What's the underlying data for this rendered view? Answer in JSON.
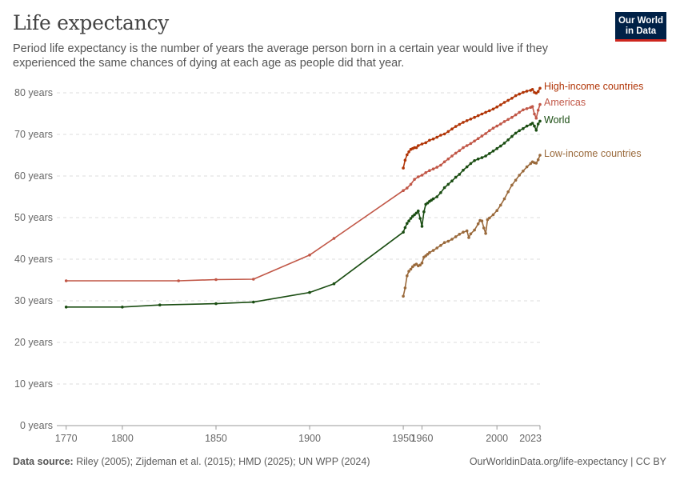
{
  "header": {
    "title": "Life expectancy",
    "subtitle": "Period life expectancy is the number of years the average person born in a certain year would live if they experienced the same chances of dying at each age as people did that year."
  },
  "logo": {
    "line1": "Our World",
    "line2": "in Data",
    "bg_color": "#002147",
    "accent_color": "#ce261e"
  },
  "footer": {
    "source_label": "Data source:",
    "source_text": "Riley (2005); Zijdeman et al. (2015); HMD (2025); UN WPP (2024)",
    "link": "OurWorldinData.org/life-expectancy | CC BY"
  },
  "chart_data": {
    "type": "line",
    "title": "Life expectancy",
    "xlim": [
      1765,
      2023
    ],
    "ylim": [
      0,
      80
    ],
    "x_ticks": [
      1770,
      1800,
      1850,
      1900,
      1950,
      1960,
      2000,
      2023
    ],
    "y_ticks": [
      0,
      10,
      20,
      30,
      40,
      50,
      60,
      70,
      80
    ],
    "y_tick_labels": [
      "0 years",
      "10 years",
      "20 years",
      "30 years",
      "40 years",
      "50 years",
      "60 years",
      "70 years",
      "80 years"
    ],
    "grid": "horizontal-dashed",
    "series": [
      {
        "name": "High-income countries",
        "color": "#b13507",
        "points": [
          [
            1950,
            61.9
          ],
          [
            1951,
            63.8
          ],
          [
            1952,
            65.1
          ],
          [
            1953,
            65.8
          ],
          [
            1954,
            66.4
          ],
          [
            1955,
            66.6
          ],
          [
            1956,
            66.8
          ],
          [
            1957,
            66.8
          ],
          [
            1958,
            67.3
          ],
          [
            1960,
            67.7
          ],
          [
            1962,
            68.0
          ],
          [
            1964,
            68.6
          ],
          [
            1966,
            68.9
          ],
          [
            1968,
            69.3
          ],
          [
            1970,
            69.8
          ],
          [
            1972,
            70.1
          ],
          [
            1974,
            70.7
          ],
          [
            1976,
            71.3
          ],
          [
            1978,
            71.9
          ],
          [
            1980,
            72.4
          ],
          [
            1982,
            72.9
          ],
          [
            1984,
            73.3
          ],
          [
            1986,
            73.7
          ],
          [
            1988,
            74.1
          ],
          [
            1990,
            74.5
          ],
          [
            1992,
            74.9
          ],
          [
            1994,
            75.3
          ],
          [
            1996,
            75.7
          ],
          [
            1998,
            76.1
          ],
          [
            2000,
            76.6
          ],
          [
            2002,
            77.1
          ],
          [
            2004,
            77.7
          ],
          [
            2006,
            78.2
          ],
          [
            2008,
            78.7
          ],
          [
            2010,
            79.3
          ],
          [
            2012,
            79.7
          ],
          [
            2014,
            80.1
          ],
          [
            2016,
            80.4
          ],
          [
            2018,
            80.6
          ],
          [
            2019,
            80.8
          ],
          [
            2020,
            80.1
          ],
          [
            2021,
            79.9
          ],
          [
            2022,
            80.3
          ],
          [
            2023,
            81.1
          ]
        ]
      },
      {
        "name": "Americas",
        "color": "#c15747",
        "points": [
          [
            1770,
            34.8
          ],
          [
            1830,
            34.8
          ],
          [
            1850,
            35.1
          ],
          [
            1870,
            35.2
          ],
          [
            1900,
            41.0
          ],
          [
            1913,
            45.0
          ],
          [
            1950,
            56.5
          ],
          [
            1952,
            57.1
          ],
          [
            1954,
            58.0
          ],
          [
            1956,
            59.2
          ],
          [
            1958,
            59.8
          ],
          [
            1960,
            60.2
          ],
          [
            1962,
            60.8
          ],
          [
            1964,
            61.3
          ],
          [
            1966,
            61.7
          ],
          [
            1968,
            62.1
          ],
          [
            1970,
            62.6
          ],
          [
            1972,
            63.4
          ],
          [
            1974,
            64.1
          ],
          [
            1976,
            64.8
          ],
          [
            1978,
            65.5
          ],
          [
            1980,
            66.1
          ],
          [
            1982,
            66.8
          ],
          [
            1984,
            67.3
          ],
          [
            1986,
            67.8
          ],
          [
            1988,
            68.4
          ],
          [
            1990,
            69.0
          ],
          [
            1992,
            69.6
          ],
          [
            1994,
            70.2
          ],
          [
            1996,
            70.9
          ],
          [
            1998,
            71.5
          ],
          [
            2000,
            72.0
          ],
          [
            2002,
            72.5
          ],
          [
            2004,
            73.1
          ],
          [
            2006,
            73.6
          ],
          [
            2008,
            74.1
          ],
          [
            2010,
            74.7
          ],
          [
            2012,
            75.3
          ],
          [
            2014,
            75.9
          ],
          [
            2016,
            76.2
          ],
          [
            2018,
            76.5
          ],
          [
            2019,
            76.7
          ],
          [
            2020,
            74.9
          ],
          [
            2021,
            73.9
          ],
          [
            2022,
            75.8
          ],
          [
            2023,
            77.2
          ]
        ]
      },
      {
        "name": "World",
        "color": "#1a4d12",
        "points": [
          [
            1770,
            28.5
          ],
          [
            1800,
            28.5
          ],
          [
            1820,
            29.0
          ],
          [
            1850,
            29.3
          ],
          [
            1870,
            29.7
          ],
          [
            1900,
            32.0
          ],
          [
            1913,
            34.1
          ],
          [
            1950,
            46.5
          ],
          [
            1951,
            47.6
          ],
          [
            1952,
            48.6
          ],
          [
            1953,
            49.2
          ],
          [
            1954,
            49.8
          ],
          [
            1955,
            50.3
          ],
          [
            1956,
            50.7
          ],
          [
            1957,
            51.1
          ],
          [
            1958,
            51.6
          ],
          [
            1959,
            49.8
          ],
          [
            1960,
            47.9
          ],
          [
            1961,
            51.4
          ],
          [
            1962,
            53.2
          ],
          [
            1963,
            53.5
          ],
          [
            1964,
            53.9
          ],
          [
            1965,
            54.2
          ],
          [
            1966,
            54.5
          ],
          [
            1968,
            55.0
          ],
          [
            1970,
            56.0
          ],
          [
            1972,
            57.2
          ],
          [
            1974,
            58.0
          ],
          [
            1976,
            58.8
          ],
          [
            1978,
            59.7
          ],
          [
            1980,
            60.4
          ],
          [
            1982,
            61.4
          ],
          [
            1984,
            62.2
          ],
          [
            1986,
            63.0
          ],
          [
            1988,
            63.7
          ],
          [
            1990,
            64.1
          ],
          [
            1992,
            64.4
          ],
          [
            1994,
            64.8
          ],
          [
            1996,
            65.4
          ],
          [
            1998,
            66.0
          ],
          [
            2000,
            66.6
          ],
          [
            2002,
            67.2
          ],
          [
            2004,
            67.9
          ],
          [
            2006,
            68.7
          ],
          [
            2008,
            69.5
          ],
          [
            2010,
            70.3
          ],
          [
            2012,
            70.9
          ],
          [
            2014,
            71.4
          ],
          [
            2016,
            72.0
          ],
          [
            2018,
            72.4
          ],
          [
            2019,
            72.7
          ],
          [
            2020,
            72.0
          ],
          [
            2021,
            71.0
          ],
          [
            2022,
            72.5
          ],
          [
            2023,
            73.2
          ]
        ]
      },
      {
        "name": "Low-income countries",
        "color": "#9a6a3c",
        "points": [
          [
            1950,
            31.1
          ],
          [
            1951,
            33.1
          ],
          [
            1952,
            36.0
          ],
          [
            1953,
            37.1
          ],
          [
            1954,
            37.6
          ],
          [
            1955,
            38.2
          ],
          [
            1956,
            38.6
          ],
          [
            1957,
            38.8
          ],
          [
            1958,
            38.4
          ],
          [
            1959,
            38.6
          ],
          [
            1960,
            39.1
          ],
          [
            1961,
            40.5
          ],
          [
            1962,
            40.8
          ],
          [
            1963,
            41.2
          ],
          [
            1964,
            41.6
          ],
          [
            1966,
            42.1
          ],
          [
            1968,
            42.7
          ],
          [
            1970,
            43.3
          ],
          [
            1972,
            44.0
          ],
          [
            1974,
            44.3
          ],
          [
            1976,
            44.8
          ],
          [
            1978,
            45.4
          ],
          [
            1980,
            46.0
          ],
          [
            1982,
            46.5
          ],
          [
            1984,
            46.8
          ],
          [
            1985,
            45.2
          ],
          [
            1986,
            46.1
          ],
          [
            1988,
            47.0
          ],
          [
            1990,
            48.5
          ],
          [
            1991,
            49.3
          ],
          [
            1992,
            49.2
          ],
          [
            1993,
            47.5
          ],
          [
            1994,
            46.2
          ],
          [
            1995,
            49.5
          ],
          [
            1996,
            49.9
          ],
          [
            1998,
            50.7
          ],
          [
            2000,
            51.7
          ],
          [
            2002,
            53.0
          ],
          [
            2004,
            54.5
          ],
          [
            2006,
            56.2
          ],
          [
            2008,
            57.8
          ],
          [
            2010,
            59.0
          ],
          [
            2012,
            60.2
          ],
          [
            2014,
            61.2
          ],
          [
            2016,
            62.2
          ],
          [
            2018,
            63.0
          ],
          [
            2019,
            63.4
          ],
          [
            2020,
            63.2
          ],
          [
            2021,
            63.1
          ],
          [
            2022,
            63.9
          ],
          [
            2023,
            65.0
          ]
        ]
      }
    ]
  }
}
